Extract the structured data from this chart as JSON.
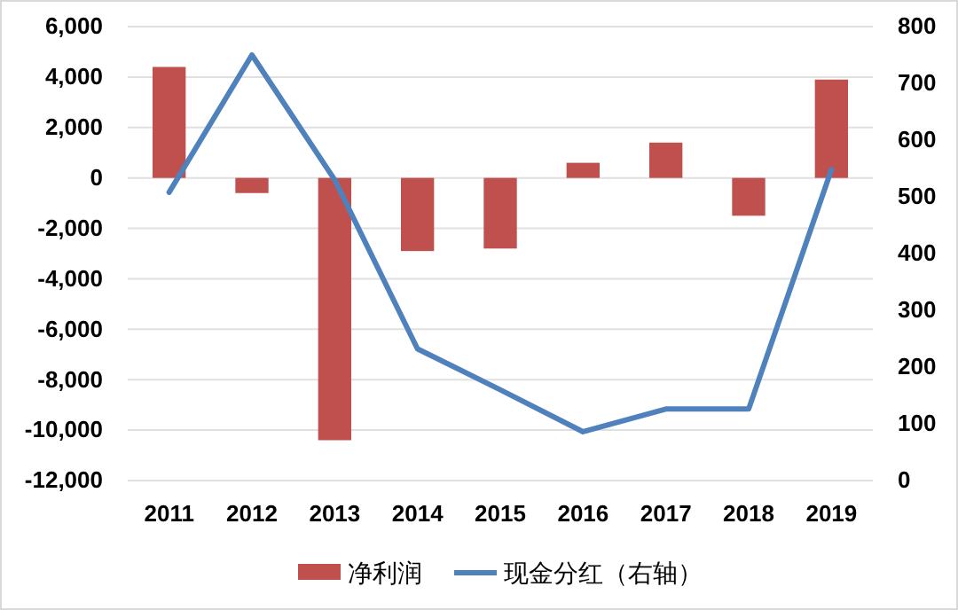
{
  "chart_data": {
    "type": "bar",
    "categories": [
      "2011",
      "2012",
      "2013",
      "2014",
      "2015",
      "2016",
      "2017",
      "2018",
      "2019"
    ],
    "series": [
      {
        "name": "净利润",
        "color": "#c0504d",
        "values": [
          4400,
          -600,
          -10400,
          -2900,
          -2800,
          600,
          1400,
          -1500,
          3900
        ]
      },
      {
        "name": "现金分红（右轴）",
        "type": "line",
        "axis": "y2",
        "color": "#4f81bd",
        "values": [
          508,
          750,
          530,
          232,
          160,
          86,
          126,
          126,
          548
        ]
      }
    ],
    "ylim": [
      -12000,
      6000
    ],
    "yticks": [
      {
        "value": -12000,
        "label": "-12,000"
      },
      {
        "value": -10000,
        "label": "-10,000"
      },
      {
        "value": -8000,
        "label": "-8,000"
      },
      {
        "value": -6000,
        "label": "-6,000"
      },
      {
        "value": -4000,
        "label": "-4,000"
      },
      {
        "value": -2000,
        "label": "-2,000"
      },
      0,
      {
        "value": 2000,
        "label": "2,000"
      },
      {
        "value": 4000,
        "label": "4,000"
      },
      {
        "value": 6000,
        "label": "6,000"
      }
    ],
    "y2lim": [
      0,
      800
    ],
    "y2ticks": [
      0,
      100,
      200,
      300,
      400,
      500,
      600,
      700,
      800
    ],
    "grid": "y",
    "legend": "bottom"
  }
}
